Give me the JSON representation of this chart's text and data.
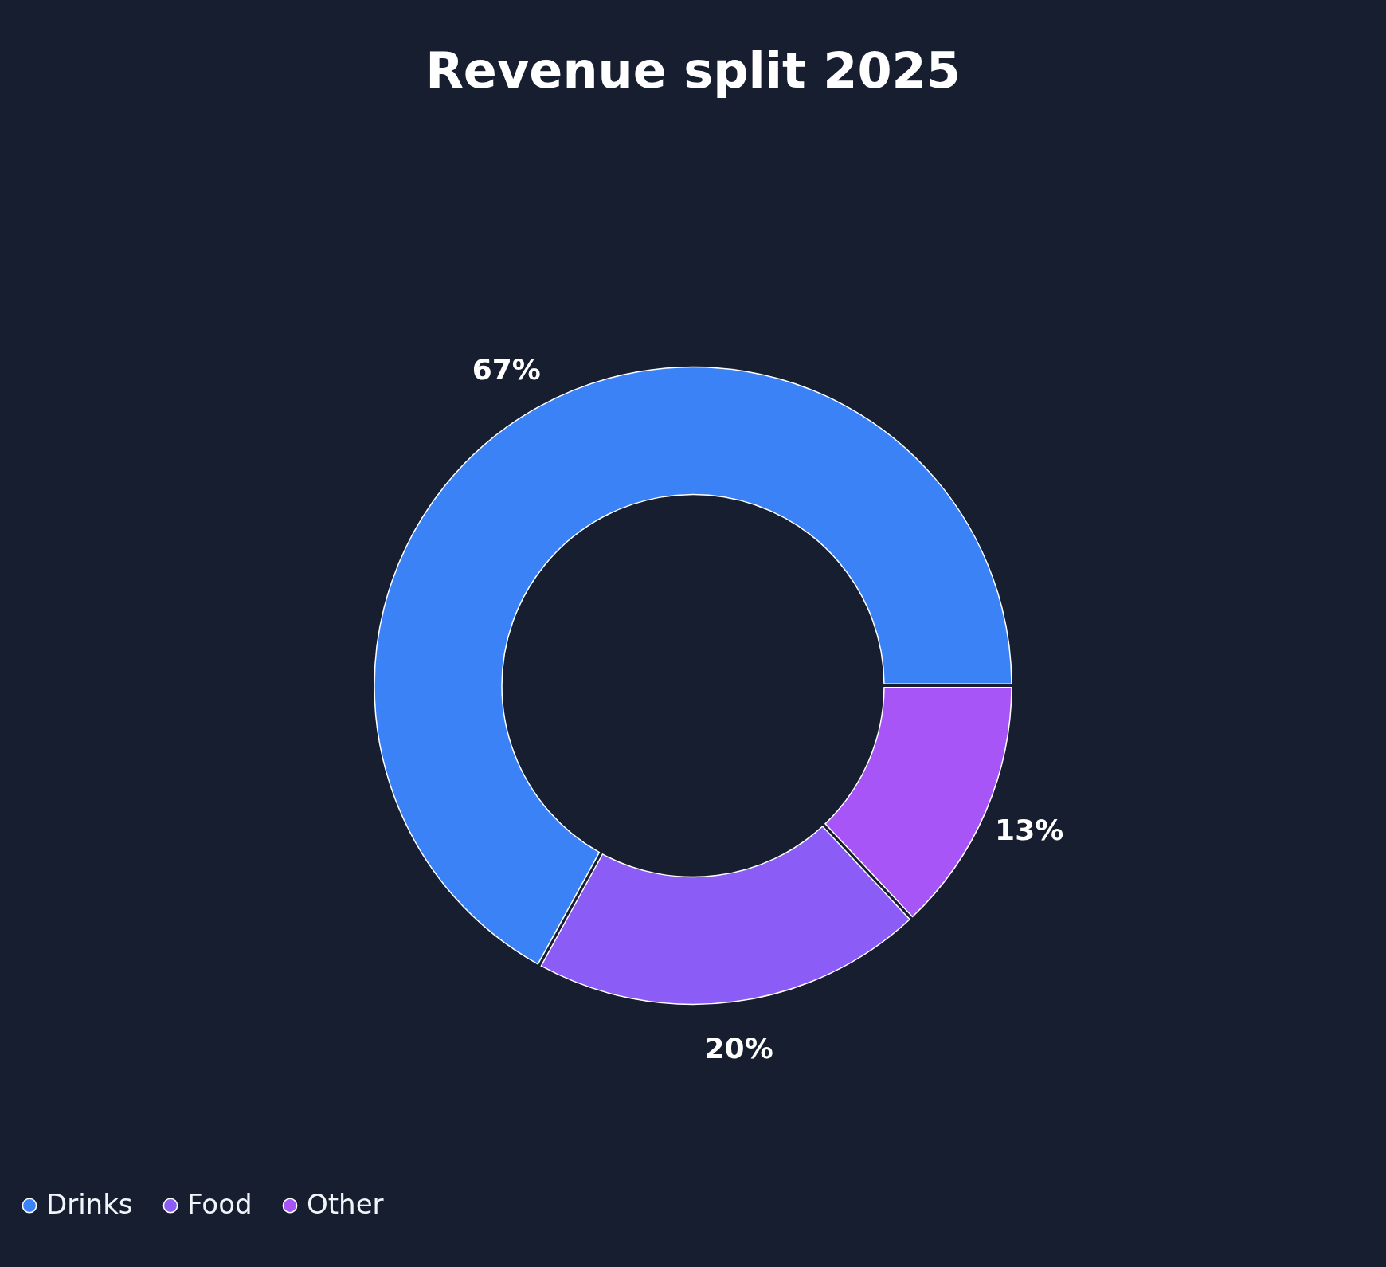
{
  "chart_data": {
    "type": "donut",
    "title": "Revenue split 2025",
    "categories": [
      "Drinks",
      "Food",
      "Other"
    ],
    "values": [
      67,
      20,
      13
    ],
    "colors": [
      "#3b82f6",
      "#8b5cf6",
      "#a855f7"
    ],
    "value_labels": [
      "67%",
      "20%",
      "13%"
    ],
    "legend": "bottom"
  }
}
